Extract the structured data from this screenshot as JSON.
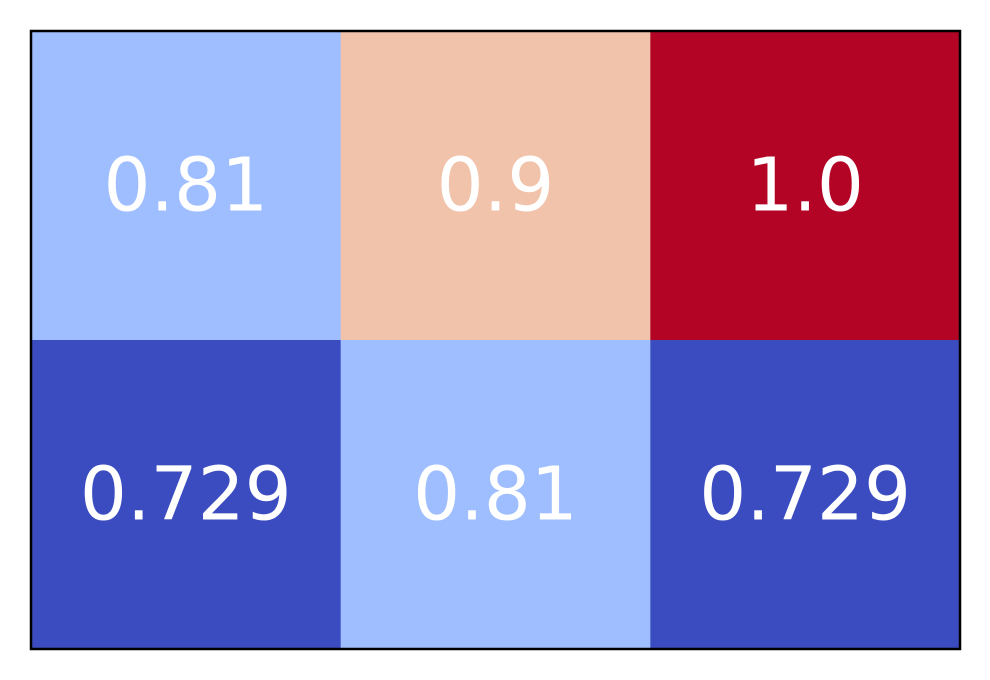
{
  "chart_data": {
    "type": "heatmap",
    "colormap": "coolwarm",
    "rows": 2,
    "cols": 3,
    "values": [
      [
        0.81,
        0.9,
        1.0
      ],
      [
        0.729,
        0.81,
        0.729
      ]
    ],
    "labels": [
      [
        "0.81",
        "0.9",
        "1.0"
      ],
      [
        "0.729",
        "0.81",
        "0.729"
      ]
    ],
    "cell_colors": [
      [
        "#9ebeff",
        "#f2c3ab",
        "#b40426"
      ],
      [
        "#3b4cc0",
        "#9ebeff",
        "#3b4cc0"
      ]
    ],
    "label_color": "#ffffff",
    "border_color": "#000000",
    "title": "",
    "xlabel": "",
    "ylabel": "",
    "colorbar": false,
    "axis_ticks": false
  }
}
